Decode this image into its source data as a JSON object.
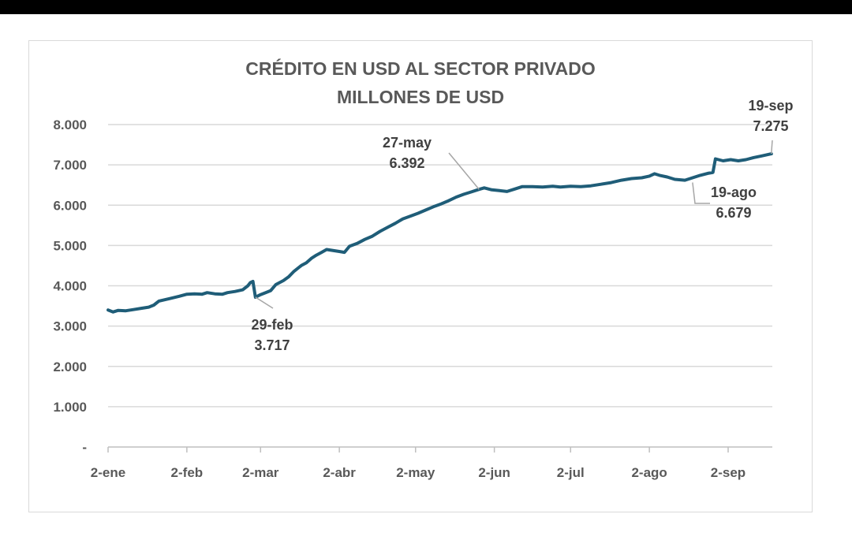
{
  "chart_data": {
    "type": "line",
    "title": "CRÉDITO EN USD AL SECTOR PRIVADO",
    "subtitle": "MILLONES DE USD",
    "xlabel": "",
    "ylabel": "",
    "ylim": [
      0,
      8000
    ],
    "y_ticks": [
      {
        "value": 0,
        "label": "-"
      },
      {
        "value": 1000,
        "label": "1.000"
      },
      {
        "value": 2000,
        "label": "2.000"
      },
      {
        "value": 3000,
        "label": "3.000"
      },
      {
        "value": 4000,
        "label": "4.000"
      },
      {
        "value": 5000,
        "label": "5.000"
      },
      {
        "value": 6000,
        "label": "6.000"
      },
      {
        "value": 7000,
        "label": "7.000"
      },
      {
        "value": 8000,
        "label": "8.000"
      }
    ],
    "x_ticks": [
      {
        "date": "2024-01-02",
        "label": "2-ene"
      },
      {
        "date": "2024-02-02",
        "label": "2-feb"
      },
      {
        "date": "2024-03-02",
        "label": "2-mar"
      },
      {
        "date": "2024-04-02",
        "label": "2-abr"
      },
      {
        "date": "2024-05-02",
        "label": "2-may"
      },
      {
        "date": "2024-06-02",
        "label": "2-jun"
      },
      {
        "date": "2024-07-02",
        "label": "2-jul"
      },
      {
        "date": "2024-08-02",
        "label": "2-ago"
      },
      {
        "date": "2024-09-02",
        "label": "2-sep"
      }
    ],
    "grid": true,
    "series_color": "#1f5d78",
    "series": [
      {
        "points": [
          [
            "2024-01-02",
            3400
          ],
          [
            "2024-01-04",
            3350
          ],
          [
            "2024-01-06",
            3390
          ],
          [
            "2024-01-09",
            3380
          ],
          [
            "2024-01-12",
            3410
          ],
          [
            "2024-01-15",
            3440
          ],
          [
            "2024-01-18",
            3470
          ],
          [
            "2024-01-20",
            3520
          ],
          [
            "2024-01-22",
            3620
          ],
          [
            "2024-01-26",
            3680
          ],
          [
            "2024-01-30",
            3740
          ],
          [
            "2024-02-02",
            3790
          ],
          [
            "2024-02-05",
            3800
          ],
          [
            "2024-02-08",
            3790
          ],
          [
            "2024-02-10",
            3830
          ],
          [
            "2024-02-13",
            3800
          ],
          [
            "2024-02-16",
            3790
          ],
          [
            "2024-02-18",
            3830
          ],
          [
            "2024-02-21",
            3860
          ],
          [
            "2024-02-24",
            3900
          ],
          [
            "2024-02-26",
            4000
          ],
          [
            "2024-02-27",
            4080
          ],
          [
            "2024-02-28",
            4110
          ],
          [
            "2024-02-29",
            3717
          ],
          [
            "2024-03-02",
            3780
          ],
          [
            "2024-03-04",
            3830
          ],
          [
            "2024-03-06",
            3880
          ],
          [
            "2024-03-08",
            4030
          ],
          [
            "2024-03-11",
            4130
          ],
          [
            "2024-03-13",
            4220
          ],
          [
            "2024-03-15",
            4350
          ],
          [
            "2024-03-18",
            4500
          ],
          [
            "2024-03-20",
            4570
          ],
          [
            "2024-03-22",
            4680
          ],
          [
            "2024-03-24",
            4760
          ],
          [
            "2024-03-26",
            4830
          ],
          [
            "2024-03-28",
            4900
          ],
          [
            "2024-03-30",
            4880
          ],
          [
            "2024-04-02",
            4850
          ],
          [
            "2024-04-04",
            4830
          ],
          [
            "2024-04-06",
            4980
          ],
          [
            "2024-04-09",
            5050
          ],
          [
            "2024-04-12",
            5150
          ],
          [
            "2024-04-15",
            5230
          ],
          [
            "2024-04-18",
            5350
          ],
          [
            "2024-04-21",
            5450
          ],
          [
            "2024-04-24",
            5550
          ],
          [
            "2024-04-27",
            5660
          ],
          [
            "2024-04-30",
            5730
          ],
          [
            "2024-05-03",
            5800
          ],
          [
            "2024-05-06",
            5880
          ],
          [
            "2024-05-09",
            5960
          ],
          [
            "2024-05-12",
            6030
          ],
          [
            "2024-05-15",
            6110
          ],
          [
            "2024-05-18",
            6200
          ],
          [
            "2024-05-21",
            6270
          ],
          [
            "2024-05-24",
            6330
          ],
          [
            "2024-05-27",
            6392
          ],
          [
            "2024-05-29",
            6430
          ],
          [
            "2024-06-01",
            6380
          ],
          [
            "2024-06-04",
            6360
          ],
          [
            "2024-06-07",
            6340
          ],
          [
            "2024-06-10",
            6400
          ],
          [
            "2024-06-13",
            6460
          ],
          [
            "2024-06-17",
            6460
          ],
          [
            "2024-06-21",
            6450
          ],
          [
            "2024-06-25",
            6470
          ],
          [
            "2024-06-28",
            6450
          ],
          [
            "2024-07-02",
            6470
          ],
          [
            "2024-07-06",
            6460
          ],
          [
            "2024-07-10",
            6480
          ],
          [
            "2024-07-14",
            6520
          ],
          [
            "2024-07-18",
            6560
          ],
          [
            "2024-07-22",
            6620
          ],
          [
            "2024-07-26",
            6660
          ],
          [
            "2024-07-30",
            6680
          ],
          [
            "2024-08-02",
            6720
          ],
          [
            "2024-08-04",
            6780
          ],
          [
            "2024-08-06",
            6740
          ],
          [
            "2024-08-09",
            6700
          ],
          [
            "2024-08-12",
            6640
          ],
          [
            "2024-08-16",
            6620
          ],
          [
            "2024-08-19",
            6679
          ],
          [
            "2024-08-22",
            6740
          ],
          [
            "2024-08-25",
            6790
          ],
          [
            "2024-08-27",
            6810
          ],
          [
            "2024-08-28",
            7150
          ],
          [
            "2024-08-31",
            7100
          ],
          [
            "2024-09-03",
            7130
          ],
          [
            "2024-09-06",
            7100
          ],
          [
            "2024-09-09",
            7130
          ],
          [
            "2024-09-12",
            7180
          ],
          [
            "2024-09-15",
            7220
          ],
          [
            "2024-09-19",
            7275
          ]
        ]
      }
    ],
    "annotations": [
      {
        "date_label": "29-feb",
        "value_label": "3.717",
        "date": "2024-02-29",
        "value": 3717,
        "placement": "below"
      },
      {
        "date_label": "27-may",
        "value_label": "6.392",
        "date": "2024-05-27",
        "value": 6392,
        "placement": "above-left"
      },
      {
        "date_label": "19-ago",
        "value_label": "6.679",
        "date": "2024-08-19",
        "value": 6679,
        "placement": "below-right"
      },
      {
        "date_label": "19-sep",
        "value_label": "7.275",
        "date": "2024-09-19",
        "value": 7275,
        "placement": "above"
      }
    ]
  }
}
